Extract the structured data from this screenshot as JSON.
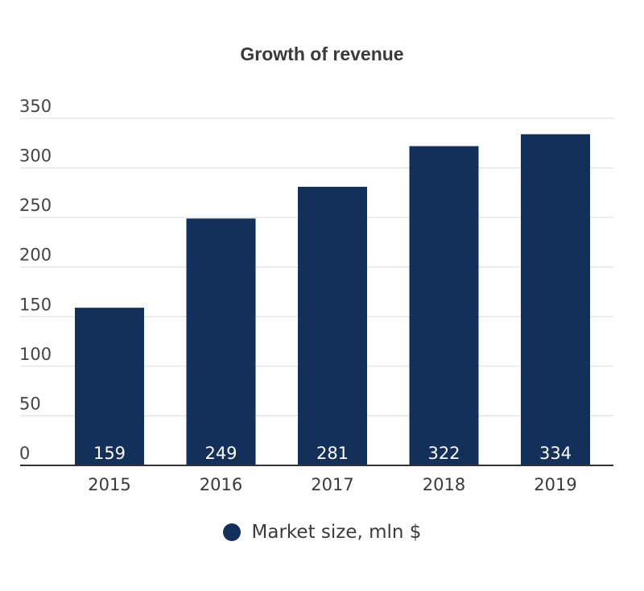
{
  "chart_data": {
    "type": "bar",
    "title": "Growth of revenue",
    "categories": [
      "2015",
      "2016",
      "2017",
      "2018",
      "2019"
    ],
    "series": [
      {
        "name": "Market size, mln $",
        "values": [
          159,
          249,
          281,
          322,
          334
        ],
        "color": "#13305a"
      }
    ],
    "ylim": [
      0,
      350
    ],
    "yticks": [
      0,
      50,
      100,
      150,
      200,
      250,
      300,
      350
    ],
    "grid": true,
    "legend_position": "bottom",
    "data_labels": true,
    "xlabel": "",
    "ylabel": ""
  }
}
